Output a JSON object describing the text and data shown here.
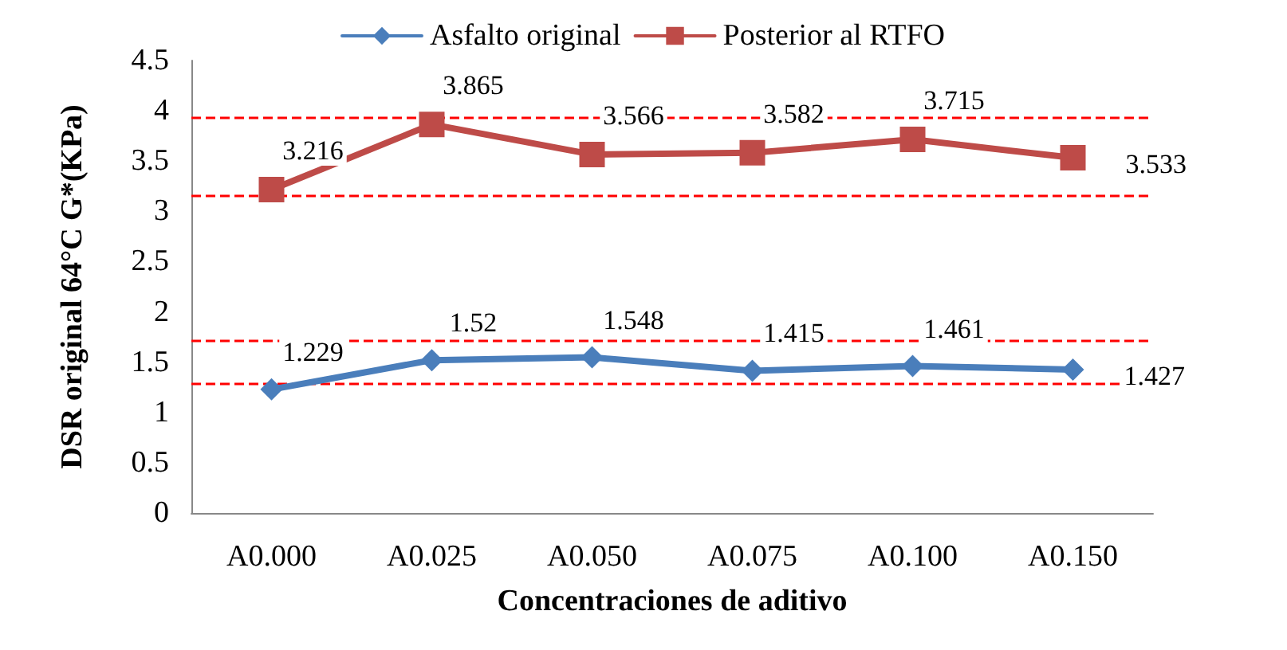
{
  "chart_data": {
    "type": "line",
    "xlabel": "Concentraciones de aditivo",
    "ylabel": "DSR original 64°C G*(KPa)",
    "categories": [
      "A0.000",
      "A0.025",
      "A0.050",
      "A0.075",
      "A0.100",
      "A0.150"
    ],
    "series": [
      {
        "name": "Asfalto original",
        "color": "#4a7ebb",
        "marker": "diamond",
        "values": [
          1.229,
          1.52,
          1.548,
          1.415,
          1.461,
          1.427
        ]
      },
      {
        "name": "Posterior al RTFO",
        "color": "#be4b48",
        "marker": "square",
        "values": [
          3.216,
          3.865,
          3.566,
          3.582,
          3.715,
          3.533
        ]
      }
    ],
    "ylim": [
      0,
      4.5
    ],
    "yticks": [
      0,
      0.5,
      1,
      1.5,
      2,
      2.5,
      3,
      3.5,
      4,
      4.5
    ],
    "ref_lines": [
      {
        "axis": "y",
        "value": 3.93,
        "color": "#ff0000",
        "line_style": "dashed"
      },
      {
        "axis": "y",
        "value": 3.15,
        "color": "#ff0000",
        "line_style": "dashed"
      },
      {
        "axis": "y",
        "value": 1.72,
        "color": "#ff0000",
        "line_style": "dashed"
      },
      {
        "axis": "y",
        "value": 1.29,
        "color": "#ff0000",
        "line_style": "dashed"
      }
    ],
    "data_labels": true,
    "legend": "top",
    "grid": false,
    "line_style": "solid"
  }
}
